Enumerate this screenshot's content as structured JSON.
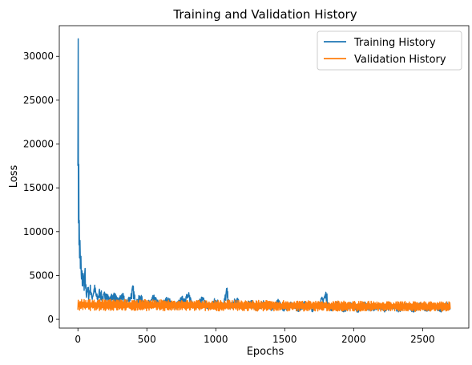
{
  "chart_data": {
    "type": "line",
    "title": "Training and Validation History",
    "xlabel": "Epochs",
    "ylabel": "Loss",
    "xlim": [
      -135,
      2835
    ],
    "ylim": [
      -1000,
      33500
    ],
    "x_ticks": [
      0,
      500,
      1000,
      1500,
      2000,
      2500
    ],
    "y_ticks": [
      0,
      5000,
      10000,
      15000,
      20000,
      25000,
      30000
    ],
    "grid": false,
    "legend_position": "upper-right",
    "series": [
      {
        "name": "Training History",
        "color": "#1f77b4",
        "points": [
          [
            0,
            17500
          ],
          [
            2,
            32000
          ],
          [
            4,
            11000
          ],
          [
            6,
            17700
          ],
          [
            8,
            8500
          ],
          [
            10,
            11300
          ],
          [
            12,
            7000
          ],
          [
            15,
            9000
          ],
          [
            18,
            5800
          ],
          [
            22,
            7200
          ],
          [
            26,
            4600
          ],
          [
            30,
            5500
          ],
          [
            35,
            3800
          ],
          [
            40,
            4900
          ],
          [
            45,
            3300
          ],
          [
            50,
            5300
          ],
          [
            60,
            2900
          ],
          [
            70,
            3600
          ],
          [
            80,
            2700
          ],
          [
            90,
            3900
          ],
          [
            100,
            2500
          ],
          [
            120,
            3400
          ],
          [
            140,
            2300
          ],
          [
            160,
            3100
          ],
          [
            180,
            2200
          ],
          [
            200,
            2900
          ],
          [
            230,
            2000
          ],
          [
            260,
            2800
          ],
          [
            290,
            1900
          ],
          [
            320,
            2600
          ],
          [
            350,
            1800
          ],
          [
            380,
            2500
          ],
          [
            400,
            3300
          ],
          [
            420,
            1700
          ],
          [
            450,
            2400
          ],
          [
            500,
            1600
          ],
          [
            550,
            2300
          ],
          [
            600,
            1500
          ],
          [
            650,
            2200
          ],
          [
            700,
            1400
          ],
          [
            750,
            2100
          ],
          [
            800,
            2600
          ],
          [
            850,
            1500
          ],
          [
            900,
            2200
          ],
          [
            950,
            1400
          ],
          [
            1000,
            2100
          ],
          [
            1050,
            1300
          ],
          [
            1080,
            3100
          ],
          [
            1100,
            1400
          ],
          [
            1150,
            2100
          ],
          [
            1200,
            1300
          ],
          [
            1250,
            2000
          ],
          [
            1300,
            1200
          ],
          [
            1350,
            1900
          ],
          [
            1400,
            1200
          ],
          [
            1450,
            1900
          ],
          [
            1500,
            1100
          ],
          [
            1550,
            1800
          ],
          [
            1600,
            1100
          ],
          [
            1650,
            1800
          ],
          [
            1700,
            1100
          ],
          [
            1750,
            1700
          ],
          [
            1800,
            2700
          ],
          [
            1830,
            1100
          ],
          [
            1880,
            1700
          ],
          [
            1930,
            1000
          ],
          [
            1980,
            1700
          ],
          [
            2030,
            1000
          ],
          [
            2080,
            1700
          ],
          [
            2130,
            1000
          ],
          [
            2180,
            1600
          ],
          [
            2230,
            1000
          ],
          [
            2280,
            1600
          ],
          [
            2330,
            1000
          ],
          [
            2380,
            1600
          ],
          [
            2430,
            1000
          ],
          [
            2480,
            1600
          ],
          [
            2530,
            1000
          ],
          [
            2580,
            1600
          ],
          [
            2630,
            1000
          ],
          [
            2680,
            1800
          ],
          [
            2700,
            1300
          ]
        ]
      },
      {
        "name": "Validation History",
        "color": "#ff7f0e",
        "band": {
          "x_start": 0,
          "x_end": 2700,
          "low": 1000,
          "high": 2300,
          "low_end": 900,
          "high_end": 2000
        }
      }
    ]
  }
}
